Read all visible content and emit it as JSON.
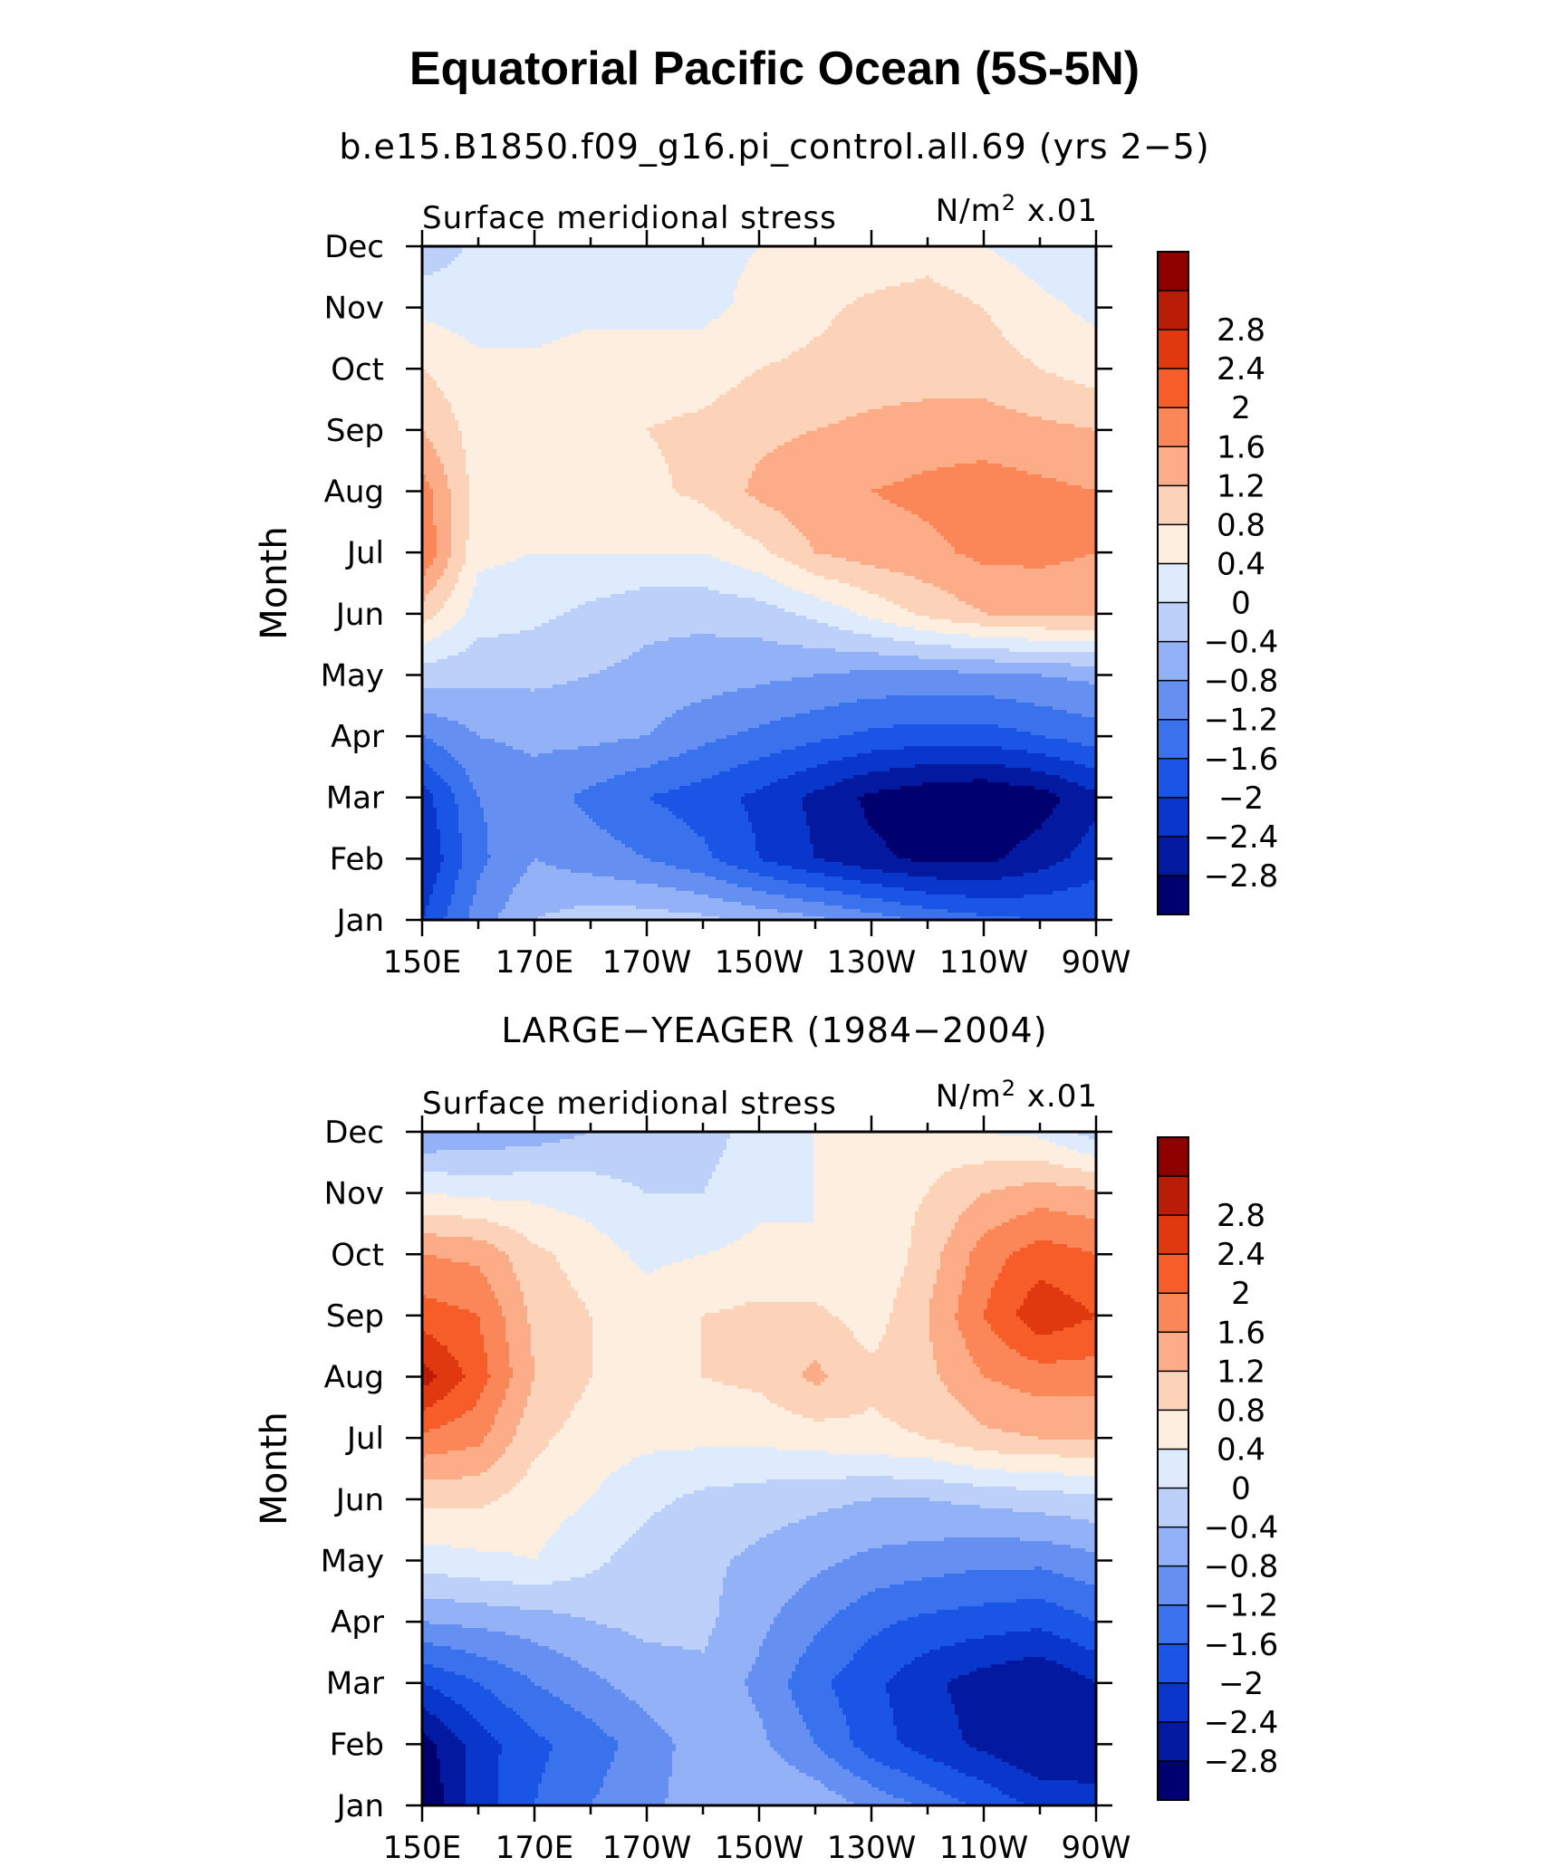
{
  "title": "Equatorial Pacific Ocean (5S-5N)",
  "subtitle": "b.e15.B1850.f09_g16.pi_control.all.69 (yrs 2−5)",
  "colors": [
    "#00006e",
    "#0319a0",
    "#0a37cb",
    "#1a55e6",
    "#3a72ee",
    "#6590f2",
    "#93b1f6",
    "#bcd0fa",
    "#deebfc",
    "#fdeedf",
    "#fcd2b8",
    "#fcad88",
    "#fb8758",
    "#f75d28",
    "#e0380f",
    "#ba1d07",
    "#8c0000"
  ],
  "levels": [
    -3.2,
    -2.8,
    -2.4,
    -2,
    -1.6,
    -1.2,
    -0.8,
    -0.4,
    0,
    0.4,
    0.8,
    1.2,
    1.6,
    2,
    2.4,
    2.8,
    3.2
  ],
  "colorbar_labels": [
    "2.8",
    "2.4",
    "2",
    "1.6",
    "1.2",
    "0.8",
    "0.4",
    "0",
    "−0.4",
    "−0.8",
    "−1.2",
    "−1.6",
    "−2",
    "−2.4",
    "−2.8"
  ],
  "chart_data": [
    {
      "type": "heatmap",
      "panel_title": "",
      "left_label": "Surface meridional stress",
      "units_prefix": "N/m",
      "units_power": "2",
      "units_suffix": " x.01",
      "ylabel": "Month",
      "xlabel": "",
      "x": [
        150,
        160,
        170,
        180,
        190,
        200,
        210,
        220,
        230,
        240,
        250,
        260,
        270
      ],
      "x_tick_values": [
        150,
        170,
        190,
        210,
        230,
        250,
        270
      ],
      "x_tick_labels": [
        "150E",
        "170E",
        "170W",
        "150W",
        "130W",
        "110W",
        "90W"
      ],
      "y_tick_labels": [
        "Jan",
        "Feb",
        "Mar",
        "Apr",
        "May",
        "Jun",
        "Jul",
        "Aug",
        "Sep",
        "Oct",
        "Nov",
        "Dec"
      ],
      "z": [
        [
          -2.0,
          -1.0,
          -0.4,
          -0.2,
          -0.2,
          -0.3,
          -0.5,
          -0.7,
          -1.0,
          -1.3,
          -1.5,
          -1.6,
          -1.6
        ],
        [
          -2.4,
          -1.3,
          -0.8,
          -1.0,
          -1.2,
          -1.5,
          -2.0,
          -2.4,
          -2.7,
          -2.9,
          -2.9,
          -2.6,
          -2.2
        ],
        [
          -2.2,
          -1.2,
          -1.0,
          -1.3,
          -1.6,
          -1.8,
          -2.1,
          -2.5,
          -2.9,
          -3.1,
          -3.2,
          -3.0,
          -2.5
        ],
        [
          -1.2,
          -0.8,
          -0.7,
          -0.7,
          -0.8,
          -1.1,
          -1.3,
          -1.5,
          -1.7,
          -1.8,
          -1.8,
          -1.6,
          -1.4
        ],
        [
          -0.2,
          -0.3,
          -0.3,
          -0.4,
          -0.5,
          -0.6,
          -0.7,
          -0.8,
          -0.9,
          -0.9,
          -0.9,
          -0.8,
          -0.7
        ],
        [
          1.0,
          0.2,
          0.1,
          -0.1,
          -0.3,
          -0.3,
          -0.2,
          0.1,
          0.5,
          0.9,
          1.2,
          1.3,
          1.3
        ],
        [
          2.0,
          0.5,
          0.4,
          0.4,
          0.4,
          0.4,
          0.7,
          1.2,
          1.4,
          1.5,
          1.7,
          1.7,
          1.6
        ],
        [
          1.8,
          0.6,
          0.5,
          0.6,
          0.7,
          0.9,
          1.3,
          1.5,
          1.6,
          1.7,
          1.8,
          1.7,
          1.6
        ],
        [
          1.2,
          0.6,
          0.5,
          0.6,
          0.8,
          0.9,
          1.1,
          1.2,
          1.3,
          1.4,
          1.4,
          1.3,
          1.2
        ],
        [
          0.8,
          0.5,
          0.5,
          0.6,
          0.6,
          0.6,
          0.8,
          0.9,
          1.0,
          1.0,
          1.0,
          0.8,
          0.6
        ],
        [
          0.3,
          0.2,
          0.2,
          0.3,
          0.3,
          0.3,
          0.5,
          0.7,
          0.9,
          1.0,
          0.8,
          0.5,
          0.3
        ],
        [
          -0.3,
          0.1,
          0.1,
          0.2,
          0.3,
          0.3,
          0.4,
          0.4,
          0.5,
          0.6,
          0.4,
          0.2,
          0.1
        ]
      ]
    },
    {
      "type": "heatmap",
      "panel_title": "LARGE−YEAGER (1984−2004)",
      "left_label": "Surface meridional stress",
      "units_prefix": "N/m",
      "units_power": "2",
      "units_suffix": " x.01",
      "ylabel": "Month",
      "xlabel": "",
      "x": [
        150,
        160,
        170,
        180,
        190,
        200,
        210,
        220,
        230,
        240,
        250,
        260,
        270
      ],
      "x_tick_values": [
        150,
        170,
        190,
        210,
        230,
        250,
        270
      ],
      "x_tick_labels": [
        "150E",
        "170E",
        "170W",
        "150W",
        "130W",
        "110W",
        "90W"
      ],
      "y_tick_labels": [
        "Jan",
        "Feb",
        "Mar",
        "Apr",
        "May",
        "Jun",
        "Jul",
        "Aug",
        "Sep",
        "Oct",
        "Nov",
        "Dec"
      ],
      "z": [
        [
          -3.2,
          -2.2,
          -1.6,
          -1.2,
          -0.9,
          -0.6,
          -0.4,
          -0.5,
          -0.9,
          -1.3,
          -1.7,
          -2.1,
          -2.3
        ],
        [
          -3.0,
          -2.2,
          -1.7,
          -1.4,
          -1.0,
          -0.6,
          -0.7,
          -1.2,
          -1.8,
          -2.2,
          -2.5,
          -2.8,
          -2.6
        ],
        [
          -2.0,
          -1.6,
          -1.2,
          -0.9,
          -0.6,
          -0.5,
          -0.9,
          -1.5,
          -1.9,
          -2.3,
          -2.6,
          -2.8,
          -2.4
        ],
        [
          -0.8,
          -0.7,
          -0.6,
          -0.4,
          -0.3,
          -0.3,
          -0.7,
          -1.1,
          -1.5,
          -1.7,
          -1.8,
          -1.9,
          -1.6
        ],
        [
          0.2,
          0.3,
          0.4,
          0.1,
          -0.2,
          -0.3,
          -0.5,
          -0.7,
          -0.9,
          -1.0,
          -1.1,
          -1.1,
          -0.9
        ],
        [
          0.9,
          0.9,
          0.6,
          0.4,
          0.1,
          -0.1,
          -0.2,
          -0.3,
          -0.4,
          -0.4,
          -0.3,
          -0.2,
          -0.1
        ],
        [
          1.9,
          1.7,
          0.9,
          0.6,
          0.5,
          0.5,
          0.5,
          0.6,
          0.7,
          0.8,
          1.1,
          1.2,
          1.2
        ],
        [
          3.0,
          2.2,
          1.2,
          0.8,
          0.6,
          0.8,
          0.9,
          1.3,
          0.9,
          1.1,
          1.6,
          1.8,
          1.8
        ],
        [
          2.2,
          2.0,
          1.1,
          0.8,
          0.6,
          0.8,
          0.9,
          0.9,
          0.6,
          1.2,
          2.0,
          2.7,
          2.4
        ],
        [
          1.6,
          1.5,
          0.9,
          0.6,
          0.3,
          0.4,
          0.5,
          0.4,
          0.4,
          1.0,
          1.8,
          2.2,
          2.0
        ],
        [
          0.4,
          0.3,
          0.3,
          0.2,
          0.0,
          0.0,
          0.3,
          0.4,
          0.6,
          0.8,
          1.2,
          1.4,
          1.3
        ],
        [
          -0.8,
          -0.7,
          -0.6,
          -0.4,
          -0.3,
          -0.2,
          0.2,
          0.4,
          0.5,
          0.6,
          0.4,
          0.3,
          -0.2
        ]
      ]
    }
  ]
}
